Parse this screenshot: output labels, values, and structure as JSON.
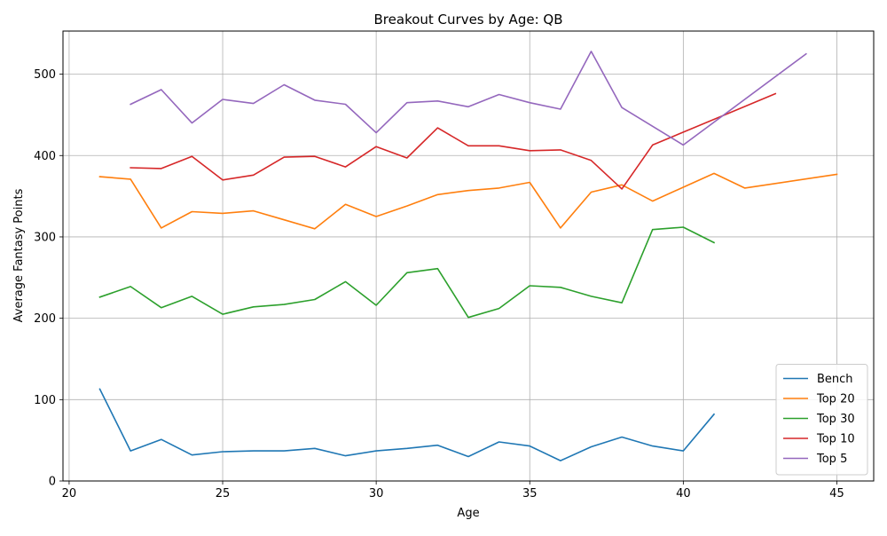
{
  "chart_data": {
    "type": "line",
    "title": "Breakout Curves by Age: QB",
    "xlabel": "Age",
    "ylabel": "Average Fantasy Points",
    "xlim": [
      19.8,
      46.2
    ],
    "ylim": [
      0,
      553
    ],
    "xticks": [
      20,
      25,
      30,
      35,
      40,
      45
    ],
    "yticks": [
      0,
      100,
      200,
      300,
      400,
      500
    ],
    "grid": true,
    "legend_position": "lower-right",
    "series": [
      {
        "name": "Bench",
        "color": "#1f77b4",
        "x": [
          21,
          22,
          23,
          24,
          25,
          26,
          27,
          28,
          29,
          30,
          31,
          32,
          33,
          34,
          35,
          36,
          37,
          38,
          39,
          40,
          41
        ],
        "y": [
          113,
          37,
          51,
          32,
          36,
          37,
          37,
          40,
          31,
          37,
          40,
          44,
          30,
          48,
          43,
          25,
          42,
          54,
          43,
          37,
          82
        ]
      },
      {
        "name": "Top 20",
        "color": "#ff7f0e",
        "x": [
          21,
          22,
          23,
          24,
          25,
          26,
          27,
          28,
          29,
          30,
          31,
          32,
          33,
          34,
          35,
          36,
          37,
          38,
          39,
          40,
          41,
          42,
          45
        ],
        "y": [
          374,
          371,
          311,
          331,
          329,
          332,
          321,
          310,
          340,
          325,
          338,
          352,
          357,
          360,
          367,
          311,
          355,
          364,
          344,
          361,
          378,
          360,
          377
        ]
      },
      {
        "name": "Top 30",
        "color": "#2ca02c",
        "x": [
          21,
          22,
          23,
          24,
          25,
          26,
          27,
          28,
          29,
          30,
          31,
          32,
          33,
          34,
          35,
          36,
          37,
          38,
          39,
          40,
          41
        ],
        "y": [
          226,
          239,
          213,
          227,
          205,
          214,
          217,
          223,
          245,
          216,
          256,
          261,
          201,
          212,
          240,
          238,
          227,
          219,
          309,
          312,
          293
        ]
      },
      {
        "name": "Top 10",
        "color": "#d62728",
        "x": [
          22,
          23,
          24,
          25,
          26,
          27,
          28,
          29,
          30,
          31,
          32,
          33,
          34,
          35,
          36,
          37,
          38,
          39,
          43
        ],
        "y": [
          385,
          384,
          399,
          370,
          376,
          398,
          399,
          386,
          411,
          397,
          434,
          412,
          412,
          406,
          407,
          394,
          359,
          413,
          476
        ]
      },
      {
        "name": "Top 5",
        "color": "#9467bd",
        "x": [
          22,
          23,
          24,
          25,
          26,
          27,
          28,
          29,
          30,
          31,
          32,
          33,
          34,
          35,
          36,
          37,
          38,
          40,
          44
        ],
        "y": [
          463,
          481,
          440,
          469,
          464,
          487,
          468,
          463,
          428,
          465,
          467,
          460,
          475,
          465,
          457,
          528,
          459,
          413,
          525
        ]
      }
    ]
  }
}
